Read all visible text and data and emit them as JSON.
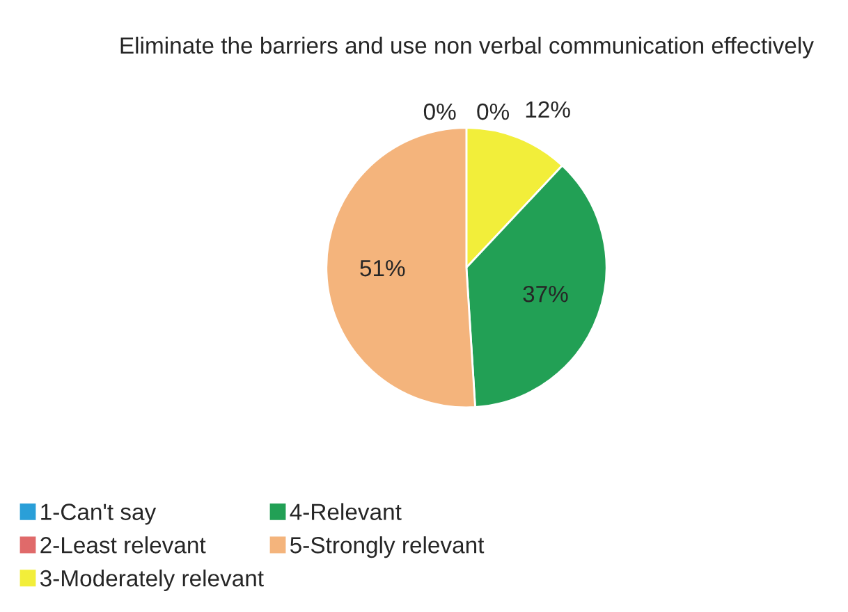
{
  "chart_data": {
    "type": "pie",
    "title": "Eliminate the barriers and use non verbal communication effectively",
    "categories": [
      "1-Can't say",
      "2-Least relevant",
      "3-Moderately relevant",
      "4-Relevant",
      "5-Strongly relevant"
    ],
    "values": [
      0,
      0,
      12,
      37,
      51
    ],
    "colors": [
      "#2a9fd8",
      "#e06a6a",
      "#f2ee3a",
      "#22a055",
      "#f4b47c"
    ],
    "value_labels": [
      "0%",
      "0%",
      "12%",
      "37%",
      "51%"
    ],
    "legend": "bottom"
  }
}
